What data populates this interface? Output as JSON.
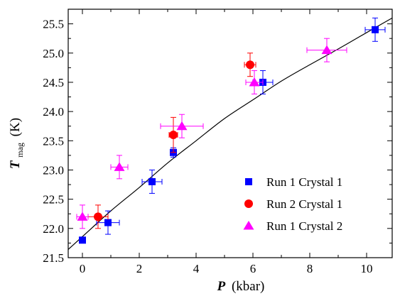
{
  "chart_data": {
    "type": "scatter",
    "x_label": {
      "symbol": "P",
      "unit": "(kbar)"
    },
    "y_label": {
      "symbol": "T",
      "subscript": "mag",
      "unit": "(K)"
    },
    "xlim": [
      -0.5,
      10.9
    ],
    "ylim": [
      21.5,
      25.75
    ],
    "x_ticks": [
      "0",
      "2",
      "4",
      "6",
      "8",
      "10"
    ],
    "x_tick_values": [
      0,
      2,
      4,
      6,
      8,
      10
    ],
    "y_ticks": [
      "21.5",
      "22.0",
      "22.5",
      "23.0",
      "23.5",
      "24.0",
      "24.5",
      "25.0",
      "25.5"
    ],
    "y_tick_values": [
      21.5,
      22.0,
      22.5,
      23.0,
      23.5,
      24.0,
      24.5,
      25.0,
      25.5
    ],
    "grid": false,
    "legend_position": "bottom-right",
    "fit_curve": {
      "x": [
        -0.5,
        0,
        1,
        2,
        3,
        4,
        5,
        6,
        7,
        8,
        9,
        10,
        10.9
      ],
      "y": [
        21.64,
        21.86,
        22.3,
        22.7,
        23.12,
        23.5,
        23.88,
        24.2,
        24.52,
        24.8,
        25.07,
        25.35,
        25.6
      ]
    },
    "series": [
      {
        "name": "Run 1 Crystal 1",
        "color": "#0000ff",
        "marker": "square",
        "points": [
          {
            "x": 0.0,
            "y": 21.8,
            "xerr": 0,
            "yerr": 0
          },
          {
            "x": 0.9,
            "y": 22.1,
            "xerr": 0.4,
            "yerr": 0.2
          },
          {
            "x": 2.45,
            "y": 22.8,
            "xerr": 0.35,
            "yerr": 0.2
          },
          {
            "x": 3.2,
            "y": 23.3,
            "xerr": 0.1,
            "yerr": 0.08
          },
          {
            "x": 6.35,
            "y": 24.5,
            "xerr": 0.35,
            "yerr": 0.2
          },
          {
            "x": 10.3,
            "y": 25.4,
            "xerr": 0.35,
            "yerr": 0.2
          }
        ]
      },
      {
        "name": "Run 2 Crystal 1",
        "color": "#ff0000",
        "marker": "circle",
        "points": [
          {
            "x": 0.55,
            "y": 22.2,
            "xerr": 0.35,
            "yerr": 0.2
          },
          {
            "x": 3.2,
            "y": 23.6,
            "xerr": 0.15,
            "yerr": 0.3
          },
          {
            "x": 5.9,
            "y": 24.8,
            "xerr": 0.2,
            "yerr": 0.2
          }
        ]
      },
      {
        "name": "Run 1 Crystal 2",
        "color": "#ff00ff",
        "marker": "triangle",
        "points": [
          {
            "x": 0.0,
            "y": 22.2,
            "xerr": 0.2,
            "yerr": 0.2
          },
          {
            "x": 1.3,
            "y": 23.05,
            "xerr": 0.3,
            "yerr": 0.2
          },
          {
            "x": 3.5,
            "y": 23.75,
            "xerr": 0.75,
            "yerr": 0.2
          },
          {
            "x": 6.05,
            "y": 24.5,
            "xerr": 0.3,
            "yerr": 0.2
          },
          {
            "x": 8.6,
            "y": 25.05,
            "xerr": 0.7,
            "yerr": 0.2
          }
        ]
      }
    ]
  }
}
